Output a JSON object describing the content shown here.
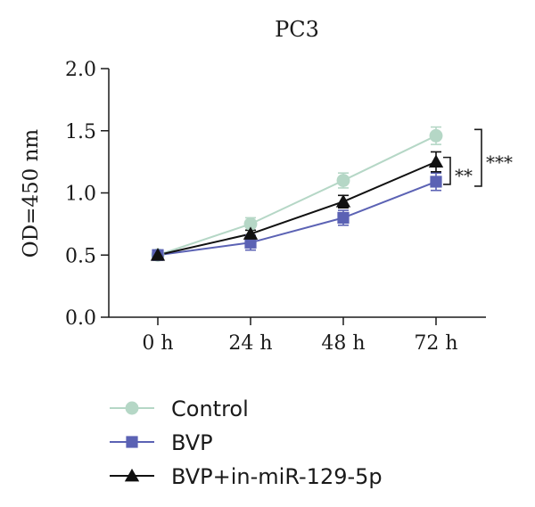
{
  "chart_data": {
    "type": "line",
    "title": "PC3",
    "xlabel": "",
    "ylabel": "OD=450 nm",
    "categories": [
      "0 h",
      "24 h",
      "48 h",
      "72 h"
    ],
    "ylim": [
      0,
      2.0
    ],
    "yticks": [
      "0.0",
      "0.5",
      "1.0",
      "1.5",
      "2.0"
    ],
    "ytick_values": [
      0,
      0.5,
      1.0,
      1.5,
      2.0
    ],
    "grid": false,
    "legend_position": "bottom-left",
    "series": [
      {
        "name": "Control",
        "marker": "circle",
        "color": "#b5d7c6",
        "values": [
          0.5,
          0.75,
          1.1,
          1.46
        ],
        "errors": [
          0.04,
          0.05,
          0.06,
          0.07
        ]
      },
      {
        "name": "BVP",
        "marker": "square",
        "color": "#5b62b4",
        "values": [
          0.5,
          0.6,
          0.8,
          1.09
        ],
        "errors": [
          0.04,
          0.06,
          0.06,
          0.07
        ]
      },
      {
        "name": "BVP+in-miR-129-5p",
        "marker": "triangle",
        "color": "#111111",
        "values": [
          0.5,
          0.67,
          0.93,
          1.25
        ],
        "errors": [
          0.03,
          0.03,
          0.05,
          0.08
        ]
      }
    ],
    "annotations": [
      {
        "label": "**",
        "from_series": "BVP",
        "to_series": "BVP+in-miR-129-5p",
        "category": "72 h"
      },
      {
        "label": "***",
        "from_series": "BVP",
        "to_series": "Control",
        "category": "72 h"
      }
    ]
  }
}
